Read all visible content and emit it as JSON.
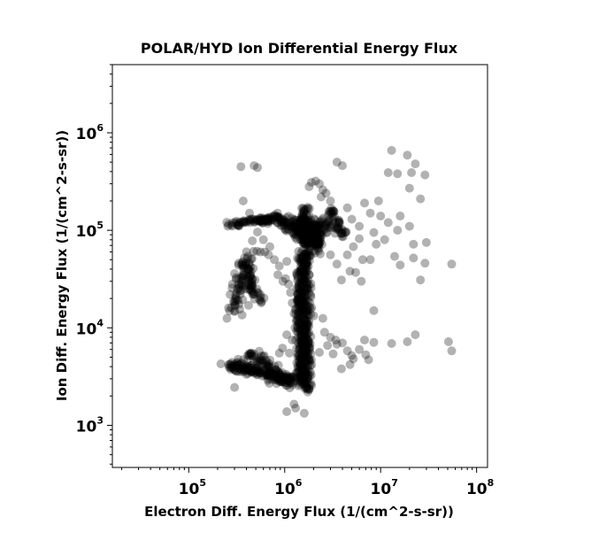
{
  "chart_data": {
    "type": "scatter",
    "title": "POLAR/HYD  Ion Differential Energy Flux",
    "xlabel": "Electron Diff. Energy Flux (1/(cm^2-s-sr))",
    "ylabel": "Ion Diff. Energy Flux (1/(cm^2-s-sr))",
    "xscale": "log",
    "yscale": "log",
    "xlim": [
      16000,
      130000000
    ],
    "ylim": [
      370,
      5000000
    ],
    "grid": false,
    "legend": "none",
    "point_color": "#000000",
    "x_ticks": [
      {
        "base": "10",
        "exp": "5",
        "value": 100000
      },
      {
        "base": "10",
        "exp": "6",
        "value": 1000000
      },
      {
        "base": "10",
        "exp": "7",
        "value": 10000000
      },
      {
        "base": "10",
        "exp": "8",
        "value": 100000000
      }
    ],
    "y_ticks": [
      {
        "base": "10",
        "exp": "3",
        "value": 1000
      },
      {
        "base": "10",
        "exp": "4",
        "value": 10000
      },
      {
        "base": "10",
        "exp": "5",
        "value": 100000
      },
      {
        "base": "10",
        "exp": "6",
        "value": 1000000
      }
    ],
    "points": [
      [
        350000,
        450000
      ],
      [
        480000,
        460000
      ],
      [
        520000,
        440000
      ],
      [
        3500000,
        500000
      ],
      [
        4000000,
        460000
      ],
      [
        13000000,
        660000
      ],
      [
        19000000,
        590000
      ],
      [
        23000000,
        480000
      ],
      [
        15000000,
        380000
      ],
      [
        21000000,
        390000
      ],
      [
        29000000,
        370000
      ],
      [
        20000000,
        270000
      ],
      [
        12000000,
        390000
      ],
      [
        2100000,
        320000
      ],
      [
        2300000,
        300000
      ],
      [
        1900000,
        310000
      ],
      [
        1800000,
        280000
      ],
      [
        2500000,
        260000
      ],
      [
        2700000,
        240000
      ],
      [
        3000000,
        200000
      ],
      [
        2400000,
        220000
      ],
      [
        4500000,
        170000
      ],
      [
        6800000,
        190000
      ],
      [
        9500000,
        200000
      ],
      [
        7800000,
        150000
      ],
      [
        10000000,
        140000
      ],
      [
        12000000,
        120000
      ],
      [
        16000000,
        140000
      ],
      [
        26000000,
        210000
      ],
      [
        5000000,
        130000
      ],
      [
        6000000,
        110000
      ],
      [
        8500000,
        95000
      ],
      [
        11000000,
        80000
      ],
      [
        15000000,
        100000
      ],
      [
        20000000,
        110000
      ],
      [
        22000000,
        72000
      ],
      [
        30000000,
        75000
      ],
      [
        9000000,
        72000
      ],
      [
        6000000,
        82000
      ],
      [
        5200000,
        68000
      ],
      [
        4500000,
        56000
      ],
      [
        6500000,
        50000
      ],
      [
        5500000,
        37000
      ],
      [
        6300000,
        30000
      ],
      [
        7800000,
        50000
      ],
      [
        14000000,
        54000
      ],
      [
        16000000,
        44000
      ],
      [
        22000000,
        52000
      ],
      [
        29000000,
        46000
      ],
      [
        26000000,
        31000
      ],
      [
        55000000,
        45000
      ],
      [
        3500000,
        45000
      ],
      [
        3900000,
        31000
      ],
      [
        4800000,
        38000
      ],
      [
        3000000,
        56000
      ],
      [
        8500000,
        15000
      ],
      [
        2500000,
        12500
      ],
      [
        2600000,
        9000
      ],
      [
        3000000,
        8000
      ],
      [
        3400000,
        7500
      ],
      [
        4000000,
        7000
      ],
      [
        4500000,
        5800
      ],
      [
        5000000,
        5200
      ],
      [
        6000000,
        6000
      ],
      [
        7000000,
        5300
      ],
      [
        7500000,
        4700
      ],
      [
        5200000,
        4800
      ],
      [
        4800000,
        4200
      ],
      [
        3900000,
        3800
      ],
      [
        3500000,
        6800
      ],
      [
        3200000,
        5400
      ],
      [
        6800000,
        7500
      ],
      [
        8500000,
        7100
      ],
      [
        13000000,
        6900
      ],
      [
        19000000,
        7200
      ],
      [
        23000000,
        8500
      ],
      [
        51000000,
        7200
      ],
      [
        55000000,
        5800
      ],
      [
        2300000,
        5600
      ],
      [
        2800000,
        6600
      ],
      [
        1050000,
        1380
      ],
      [
        1300000,
        1500
      ],
      [
        1600000,
        1330
      ],
      [
        1250000,
        1650
      ],
      [
        370000,
        200000
      ],
      [
        430000,
        150000
      ],
      [
        520000,
        96000
      ],
      [
        600000,
        80000
      ],
      [
        620000,
        60000
      ],
      [
        680000,
        56000
      ],
      [
        780000,
        50000
      ],
      [
        850000,
        35000
      ],
      [
        960000,
        30000
      ],
      [
        1020000,
        32000
      ],
      [
        880000,
        43000
      ],
      [
        1050000,
        48000
      ],
      [
        700000,
        68000
      ],
      [
        560000,
        60000
      ],
      [
        460000,
        78000
      ],
      [
        1100000,
        28000
      ],
      [
        1150000,
        23000
      ],
      [
        1200000,
        18000
      ],
      [
        1250000,
        14000
      ],
      [
        1280000,
        10000
      ],
      [
        1050000,
        8500
      ],
      [
        1200000,
        7500
      ],
      [
        950000,
        6200
      ],
      [
        1120000,
        5500
      ],
      [
        880000,
        5500
      ],
      [
        330000,
        4200
      ],
      [
        290000,
        4000
      ],
      [
        310000,
        3600
      ],
      [
        300000,
        2450
      ],
      [
        250000,
        12500
      ],
      [
        260000,
        16000
      ],
      [
        270000,
        22000
      ],
      [
        285000,
        28000
      ],
      [
        300000,
        36000
      ],
      [
        330000,
        44000
      ],
      [
        380000,
        52000
      ],
      [
        420000,
        40000
      ],
      [
        440000,
        33000
      ],
      [
        455000,
        27000
      ],
      [
        470000,
        22000
      ],
      [
        420000,
        17000
      ],
      [
        360000,
        13500
      ],
      [
        340000,
        15500
      ]
    ],
    "dense_segments": [
      {
        "from": [
          270000,
          115000
        ],
        "to": [
          900000,
          135000
        ],
        "count": 90,
        "spread": [
          0.05,
          0.035
        ]
      },
      {
        "from": [
          900000,
          120000
        ],
        "to": [
          3200000,
          110000
        ],
        "count": 110,
        "spread": [
          0.09,
          0.08
        ]
      },
      {
        "from": [
          1250000,
          100000
        ],
        "to": [
          2200000,
          80000
        ],
        "count": 80,
        "spread": [
          0.08,
          0.09
        ]
      },
      {
        "from": [
          1600000,
          170000
        ],
        "to": [
          1700000,
          2200
        ],
        "count": 380,
        "spread": [
          0.06,
          0.025
        ]
      },
      {
        "from": [
          1400000,
          40000
        ],
        "to": [
          1500000,
          2500
        ],
        "count": 160,
        "spread": [
          0.05,
          0.03
        ]
      },
      {
        "from": [
          2000000,
          120000
        ],
        "to": [
          2300000,
          60000
        ],
        "count": 60,
        "spread": [
          0.05,
          0.05
        ]
      },
      {
        "from": [
          270000,
          4200
        ],
        "to": [
          1200000,
          2900
        ],
        "count": 150,
        "spread": [
          0.1,
          0.05
        ]
      },
      {
        "from": [
          450000,
          5500
        ],
        "to": [
          1100000,
          2500
        ],
        "count": 90,
        "spread": [
          0.1,
          0.05
        ]
      },
      {
        "from": [
          280000,
          15000
        ],
        "to": [
          420000,
          55000
        ],
        "count": 70,
        "spread": [
          0.08,
          0.1
        ]
      },
      {
        "from": [
          380000,
          38000
        ],
        "to": [
          560000,
          18000
        ],
        "count": 40,
        "spread": [
          0.06,
          0.08
        ]
      },
      {
        "from": [
          3000000,
          160000
        ],
        "to": [
          4200000,
          85000
        ],
        "count": 40,
        "spread": [
          0.04,
          0.05
        ]
      }
    ]
  }
}
